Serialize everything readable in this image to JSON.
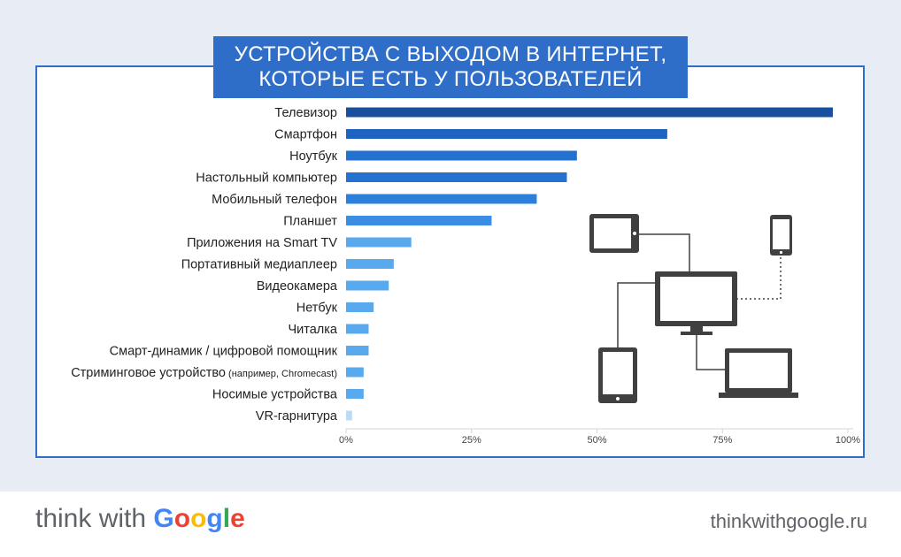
{
  "header": {
    "title_line1": "УСТРОЙСТВА С ВЫХОДОМ В ИНТЕРНЕТ,",
    "title_line2": "КОТОРЫЕ ЕСТЬ У ПОЛЬЗОВАТЕЛЕЙ"
  },
  "chart_data": {
    "type": "bar",
    "orientation": "horizontal",
    "title": "УСТРОЙСТВА С ВЫХОДОМ В ИНТЕРНЕТ, КОТОРЫЕ ЕСТЬ У ПОЛЬЗОВАТЕЛЕЙ",
    "categories": [
      "Телевизор",
      "Смартфон",
      "Ноутбук",
      "Настольный компьютер",
      "Мобильный телефон",
      "Планшет",
      "Приложения на Smart TV",
      "Портативный медиаплеер",
      "Видеокамера",
      "Нетбук",
      "Читалка",
      "Смарт-динамик / цифровой помощник",
      "Стриминговое устройство (например, Chromecast)",
      "Носимые устройства",
      "VR-гарнитура"
    ],
    "values": [
      97,
      64,
      46,
      44,
      38,
      29,
      13,
      9.5,
      8.5,
      5.5,
      4.5,
      4.5,
      3.5,
      3.5,
      1.2
    ],
    "xlim": [
      0,
      100
    ],
    "xticks": [
      "0%",
      "25%",
      "50%",
      "75%",
      "100%"
    ],
    "grid": false,
    "colors": [
      "#1a4fa0",
      "#1f63c2",
      "#2372cf",
      "#2372cf",
      "#2c80dc",
      "#3a8de2",
      "#59a9ee",
      "#59a9ee",
      "#59a9ee",
      "#59a9ee",
      "#59a9ee",
      "#59a9ee",
      "#59a9ee",
      "#59a9ee",
      "#b9dcf9"
    ]
  },
  "footer": {
    "brand_prefix": "think with ",
    "brand_google": [
      "G",
      "o",
      "o",
      "g",
      "l",
      "e"
    ],
    "brand_google_colors": [
      "#4285f4",
      "#ea4335",
      "#fbbc05",
      "#4285f4",
      "#34a853",
      "#ea4335"
    ],
    "site": "thinkwithgoogle.ru"
  },
  "illustration": {
    "icon_color": "#404040"
  }
}
